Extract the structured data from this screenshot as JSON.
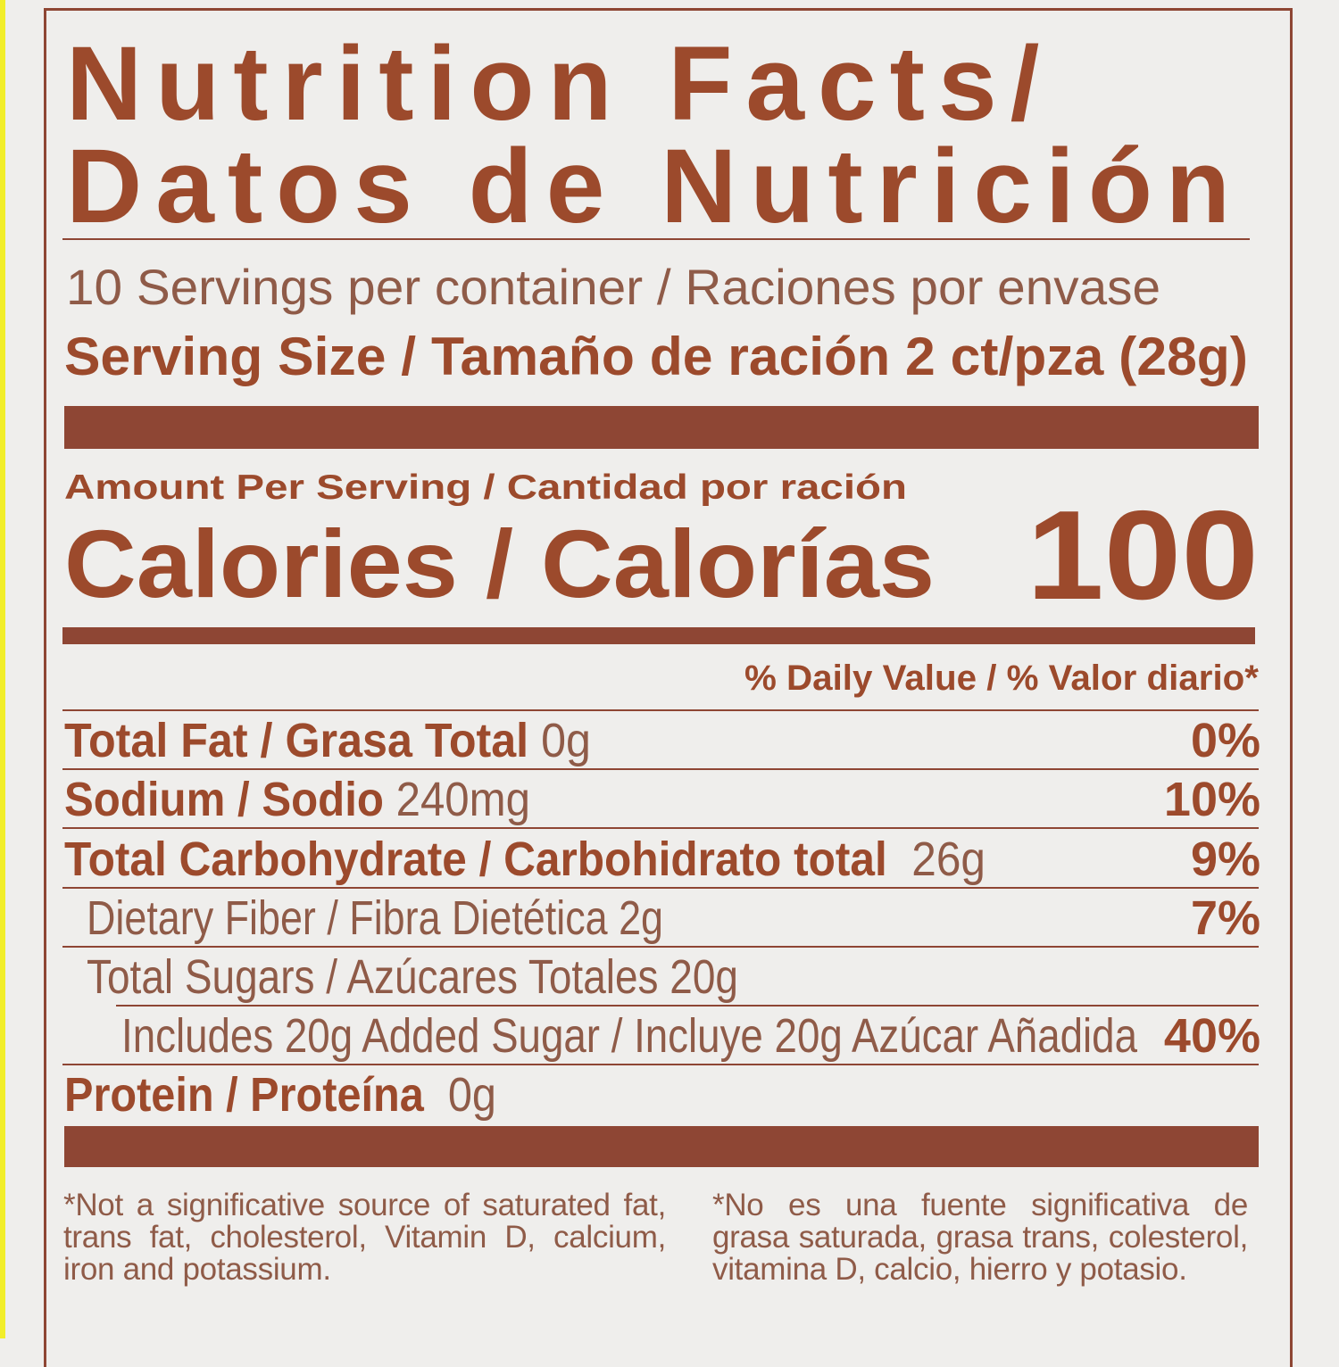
{
  "label": {
    "title_line1": "Nutrition Facts/",
    "title_line2": "Datos de Nutrición",
    "servings": "10 Servings per container / Raciones por envase",
    "serving_size": "Serving Size / Tamaño de ración 2 ct/pza (28g)",
    "amount_per_serving": "Amount Per Serving / Cantidad por ración",
    "calories_label": "Calories / Calorías",
    "calories_value": "100",
    "daily_value_header": "% Daily Value / % Valor diario*",
    "nutrients": [
      {
        "name": "Total Fat / Grasa Total",
        "amount": "0g",
        "dv": "0%"
      },
      {
        "name": "Sodium / Sodio",
        "amount": "240mg",
        "dv": "10%"
      },
      {
        "name": "Total Carbohydrate / Carbohidrato total",
        "amount": "26g",
        "dv": "9%"
      },
      {
        "name": "Dietary Fiber / Fibra Dietética 2g",
        "amount": "",
        "dv": "7%"
      },
      {
        "name": "Total Sugars / Azúcares Totales 20g",
        "amount": "",
        "dv": ""
      },
      {
        "name": "Includes 20g Added Sugar / Incluye 20g Azúcar Añadida",
        "amount": "",
        "dv": "40%"
      },
      {
        "name": "Protein / Proteína",
        "amount": "0g",
        "dv": ""
      }
    ],
    "footnote_en": "*Not a significative source of saturated fat, trans fat, cholesterol, Vitamin D, calcium, iron and potassium.",
    "footnote_es": "*No es una fuente significativa de grasa saturada, grasa trans, colesterol, vitamina D, calcio, hierro y potasio."
  },
  "colors": {
    "ink": "#9c4a2c",
    "background": "#efeeec",
    "edge": "#f2ee2a"
  }
}
